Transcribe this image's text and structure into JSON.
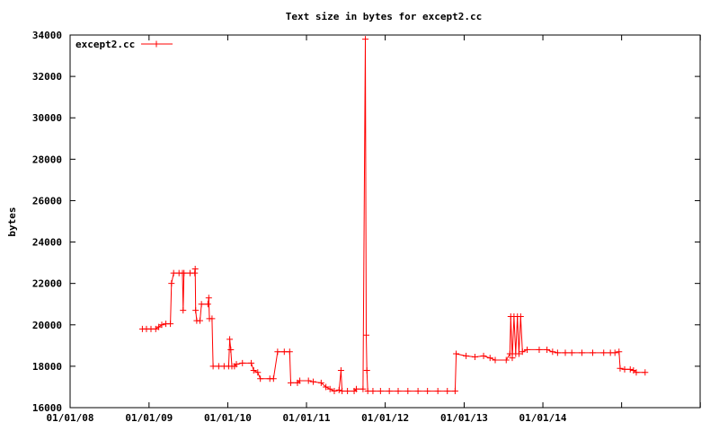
{
  "chart_data": {
    "type": "line",
    "title": "Text size in bytes for except2.cc",
    "xlabel": "",
    "ylabel": "bytes",
    "ylim": [
      16000,
      34000
    ],
    "yticks": [
      16000,
      18000,
      20000,
      22000,
      24000,
      26000,
      28000,
      30000,
      32000,
      34000
    ],
    "xlim": [
      "2008-01-01",
      "2015-12-31"
    ],
    "xticks": [
      "01/01/08",
      "01/01/09",
      "01/01/10",
      "01/01/11",
      "01/01/12",
      "01/01/13",
      "01/01/14"
    ],
    "legend_position": "top-left",
    "series": [
      {
        "name": "except2.cc",
        "color": "#ff0000",
        "points": [
          [
            "2008-12-01",
            19800
          ],
          [
            "2008-12-20",
            19800
          ],
          [
            "2009-01-10",
            19800
          ],
          [
            "2009-02-01",
            19800
          ],
          [
            "2009-02-15",
            19900
          ],
          [
            "2009-03-01",
            20000
          ],
          [
            "2009-03-20",
            20050
          ],
          [
            "2009-04-10",
            20050
          ],
          [
            "2009-04-15",
            22000
          ],
          [
            "2009-04-25",
            22500
          ],
          [
            "2009-05-20",
            22500
          ],
          [
            "2009-06-05",
            22500
          ],
          [
            "2009-06-08",
            20700
          ],
          [
            "2009-06-12",
            22500
          ],
          [
            "2009-07-10",
            22500
          ],
          [
            "2009-08-01",
            22500
          ],
          [
            "2009-08-03",
            22700
          ],
          [
            "2009-08-05",
            20700
          ],
          [
            "2009-08-10",
            20200
          ],
          [
            "2009-08-25",
            20200
          ],
          [
            "2009-09-01",
            21000
          ],
          [
            "2009-10-01",
            21000
          ],
          [
            "2009-10-05",
            21300
          ],
          [
            "2009-10-08",
            20300
          ],
          [
            "2009-10-20",
            20300
          ],
          [
            "2009-10-25",
            18000
          ],
          [
            "2009-11-20",
            18000
          ],
          [
            "2009-12-15",
            18000
          ],
          [
            "2010-01-05",
            18000
          ],
          [
            "2010-01-10",
            19300
          ],
          [
            "2010-01-15",
            18800
          ],
          [
            "2010-01-20",
            18000
          ],
          [
            "2010-02-01",
            18000
          ],
          [
            "2010-02-10",
            18100
          ],
          [
            "2010-03-10",
            18150
          ],
          [
            "2010-04-20",
            18150
          ],
          [
            "2010-05-01",
            17800
          ],
          [
            "2010-05-20",
            17700
          ],
          [
            "2010-06-01",
            17400
          ],
          [
            "2010-07-15",
            17400
          ],
          [
            "2010-08-01",
            17400
          ],
          [
            "2010-08-20",
            18700
          ],
          [
            "2010-09-20",
            18700
          ],
          [
            "2010-10-15",
            18700
          ],
          [
            "2010-10-20",
            17200
          ],
          [
            "2010-11-20",
            17200
          ],
          [
            "2010-12-01",
            17300
          ],
          [
            "2011-01-10",
            17300
          ],
          [
            "2011-02-01",
            17250
          ],
          [
            "2011-03-10",
            17200
          ],
          [
            "2011-04-01",
            17000
          ],
          [
            "2011-04-20",
            16900
          ],
          [
            "2011-05-10",
            16800
          ],
          [
            "2011-06-01",
            16850
          ],
          [
            "2011-06-10",
            17800
          ],
          [
            "2011-06-15",
            16800
          ],
          [
            "2011-07-10",
            16800
          ],
          [
            "2011-08-10",
            16800
          ],
          [
            "2011-08-20",
            16900
          ],
          [
            "2011-09-20",
            16900
          ],
          [
            "2011-10-01",
            33800
          ],
          [
            "2011-10-05",
            19500
          ],
          [
            "2011-10-08",
            17800
          ],
          [
            "2011-10-12",
            16800
          ],
          [
            "2011-11-05",
            16800
          ],
          [
            "2011-12-10",
            16800
          ],
          [
            "2012-01-20",
            16800
          ],
          [
            "2012-03-01",
            16800
          ],
          [
            "2012-04-15",
            16800
          ],
          [
            "2012-06-01",
            16800
          ],
          [
            "2012-07-15",
            16800
          ],
          [
            "2012-09-01",
            16800
          ],
          [
            "2012-10-15",
            16800
          ],
          [
            "2012-11-20",
            16800
          ],
          [
            "2012-11-25",
            18600
          ],
          [
            "2013-01-10",
            18500
          ],
          [
            "2013-02-20",
            18450
          ],
          [
            "2013-04-01",
            18500
          ],
          [
            "2013-05-01",
            18400
          ],
          [
            "2013-05-25",
            18300
          ],
          [
            "2013-07-15",
            18300
          ],
          [
            "2013-08-01",
            18600
          ],
          [
            "2013-08-05",
            20400
          ],
          [
            "2013-08-12",
            18400
          ],
          [
            "2013-08-20",
            20400
          ],
          [
            "2013-08-28",
            18600
          ],
          [
            "2013-09-05",
            20400
          ],
          [
            "2013-09-12",
            18600
          ],
          [
            "2013-09-20",
            20400
          ],
          [
            "2013-09-28",
            18700
          ],
          [
            "2013-10-20",
            18800
          ],
          [
            "2013-12-15",
            18800
          ],
          [
            "2014-01-20",
            18800
          ],
          [
            "2014-02-15",
            18700
          ],
          [
            "2014-03-10",
            18650
          ],
          [
            "2014-04-15",
            18650
          ],
          [
            "2014-05-15",
            18650
          ],
          [
            "2014-07-01",
            18650
          ],
          [
            "2014-08-20",
            18650
          ],
          [
            "2014-10-10",
            18650
          ],
          [
            "2014-11-10",
            18650
          ],
          [
            "2014-12-01",
            18650
          ],
          [
            "2014-12-20",
            18700
          ],
          [
            "2014-12-25",
            17900
          ],
          [
            "2015-01-15",
            17850
          ],
          [
            "2015-02-10",
            17850
          ],
          [
            "2015-02-25",
            17800
          ],
          [
            "2015-03-10",
            17700
          ],
          [
            "2015-04-20",
            17700
          ]
        ]
      }
    ]
  }
}
